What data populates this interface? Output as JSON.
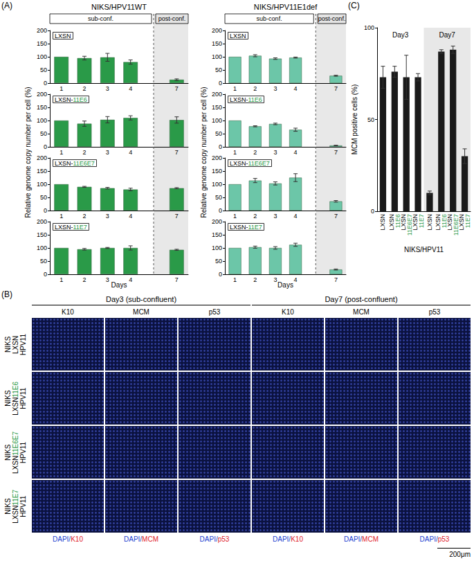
{
  "chart_data": [
    {
      "type": "bar",
      "title": [
        "LXSN"
      ],
      "categories": [
        "1",
        "2",
        "3",
        "4",
        null,
        "7"
      ],
      "values": [
        100,
        95,
        98,
        80,
        null,
        13
      ],
      "errors": [
        0,
        7,
        15,
        8,
        null,
        3
      ],
      "color": "#2a9a48",
      "ylim": [
        0,
        200
      ],
      "yticks": [
        0,
        50,
        100,
        150,
        200
      ]
    },
    {
      "type": "bar",
      "title": [
        "LXSN-",
        "11E6"
      ],
      "categories": [
        "1",
        "2",
        "3",
        "4",
        null,
        "7"
      ],
      "values": [
        100,
        88,
        103,
        110,
        null,
        102
      ],
      "errors": [
        0,
        10,
        12,
        8,
        null,
        12
      ],
      "color": "#2a9a48",
      "ylim": [
        0,
        200
      ],
      "yticks": [
        0,
        50,
        100,
        150,
        200
      ]
    },
    {
      "type": "bar",
      "title": [
        "LXSN-",
        "11E6E7"
      ],
      "categories": [
        "1",
        "2",
        "3",
        "4",
        null,
        "7"
      ],
      "values": [
        100,
        90,
        85,
        80,
        null,
        85
      ],
      "errors": [
        0,
        2,
        3,
        5,
        null,
        2
      ],
      "color": "#2a9a48",
      "ylim": [
        0,
        200
      ],
      "yticks": [
        0,
        50,
        100,
        150,
        200
      ]
    },
    {
      "type": "bar",
      "title": [
        "LXSN-",
        "11E7"
      ],
      "categories": [
        "1",
        "2",
        "3",
        "4",
        null,
        "7"
      ],
      "values": [
        100,
        95,
        100,
        100,
        null,
        93
      ],
      "errors": [
        0,
        3,
        2,
        8,
        null,
        2
      ],
      "color": "#2a9a48",
      "ylim": [
        0,
        200
      ],
      "yticks": [
        0,
        50,
        100,
        150,
        200
      ]
    },
    {
      "type": "bar",
      "title": [
        "LXSN"
      ],
      "categories": [
        "1",
        "2",
        "3",
        "4",
        null,
        "7"
      ],
      "values": [
        100,
        104,
        93,
        97,
        null,
        28
      ],
      "errors": [
        0,
        4,
        3,
        2,
        null,
        2
      ],
      "color": "#6cc6a8",
      "ylim": [
        0,
        200
      ],
      "yticks": [
        0,
        50,
        100,
        150,
        200
      ]
    },
    {
      "type": "bar",
      "title": [
        "LXSN-",
        "11E6"
      ],
      "categories": [
        "1",
        "2",
        "3",
        "4",
        null,
        "7"
      ],
      "values": [
        100,
        78,
        87,
        65,
        null,
        5
      ],
      "errors": [
        0,
        2,
        3,
        6,
        null,
        1
      ],
      "color": "#6cc6a8",
      "ylim": [
        0,
        200
      ],
      "yticks": [
        0,
        50,
        100,
        150,
        200
      ]
    },
    {
      "type": "bar",
      "title": [
        "LXSN-",
        "11E6E7"
      ],
      "categories": [
        "1",
        "2",
        "3",
        "4",
        null,
        "7"
      ],
      "values": [
        100,
        114,
        103,
        125,
        null,
        35
      ],
      "errors": [
        0,
        8,
        6,
        15,
        null,
        3
      ],
      "color": "#6cc6a8",
      "ylim": [
        0,
        200
      ],
      "yticks": [
        0,
        50,
        100,
        150,
        200
      ]
    },
    {
      "type": "bar",
      "title": [
        "LXSN-",
        "11E7"
      ],
      "categories": [
        "1",
        "2",
        "3",
        "4",
        null,
        "7"
      ],
      "values": [
        100,
        103,
        100,
        112,
        null,
        18
      ],
      "errors": [
        0,
        4,
        5,
        6,
        null,
        2
      ],
      "color": "#6cc6a8",
      "ylim": [
        0,
        200
      ],
      "yticks": [
        0,
        50,
        100,
        150,
        200
      ]
    },
    {
      "type": "bar",
      "categories": [
        [
          "LXSN"
        ],
        [
          "LXSN",
          "11E6"
        ],
        [
          "LXSN",
          "11E6E7"
        ],
        [
          "LXSN",
          "11E7"
        ],
        [
          "LXSN"
        ],
        [
          "LXSN",
          "11E6"
        ],
        [
          "LXSN",
          "11E6E7"
        ],
        [
          "LXSN",
          "11E7"
        ]
      ],
      "group_labels": [
        "Day3",
        "Day7"
      ],
      "values": [
        73,
        76,
        73,
        73,
        10,
        87,
        88,
        30
      ],
      "errors": [
        6,
        3,
        12,
        2,
        1,
        1,
        2,
        4
      ],
      "color": "#1a1a1a",
      "ylim": [
        0,
        100
      ],
      "yticks": [
        0,
        50,
        100
      ],
      "ylabel": "MCM positive cells (%)",
      "xlabel": "NIKS/HPV11"
    }
  ],
  "figure": {
    "panel_labels": [
      "(A)",
      "(B)",
      "(C)"
    ],
    "panel_A": {
      "columns": [
        "NIKS/HPV11WT",
        "NIKS/HPV11E1def"
      ],
      "phases": [
        "sub-conf.",
        "post-conf."
      ],
      "ylabel": "Relative genome copy number per cell (%)",
      "xlabel": "Days"
    },
    "panel_B": {
      "groups": [
        "Day3 (sub-confluent)",
        "Day7 (post-confluent)"
      ],
      "stains": [
        "K10",
        "MCM",
        "p53"
      ],
      "rows": [
        [
          [
            "NIKS"
          ],
          [
            "LXSN"
          ],
          [
            "HPV11"
          ]
        ],
        [
          [
            "NIKS"
          ],
          [
            "LXSN",
            "11E6"
          ],
          [
            "HPV11"
          ]
        ],
        [
          [
            "NIKS"
          ],
          [
            "LXSN",
            "11E6E7"
          ],
          [
            "HPV11"
          ]
        ],
        [
          [
            "NIKS"
          ],
          [
            "LXSN",
            "11E7"
          ],
          [
            "HPV11"
          ]
        ]
      ],
      "captions": [
        [
          "DAPI/",
          "K10"
        ],
        [
          "DAPI/",
          "MCM"
        ],
        [
          "DAPI/",
          "p53"
        ]
      ],
      "scale_bar": "200μm"
    }
  }
}
